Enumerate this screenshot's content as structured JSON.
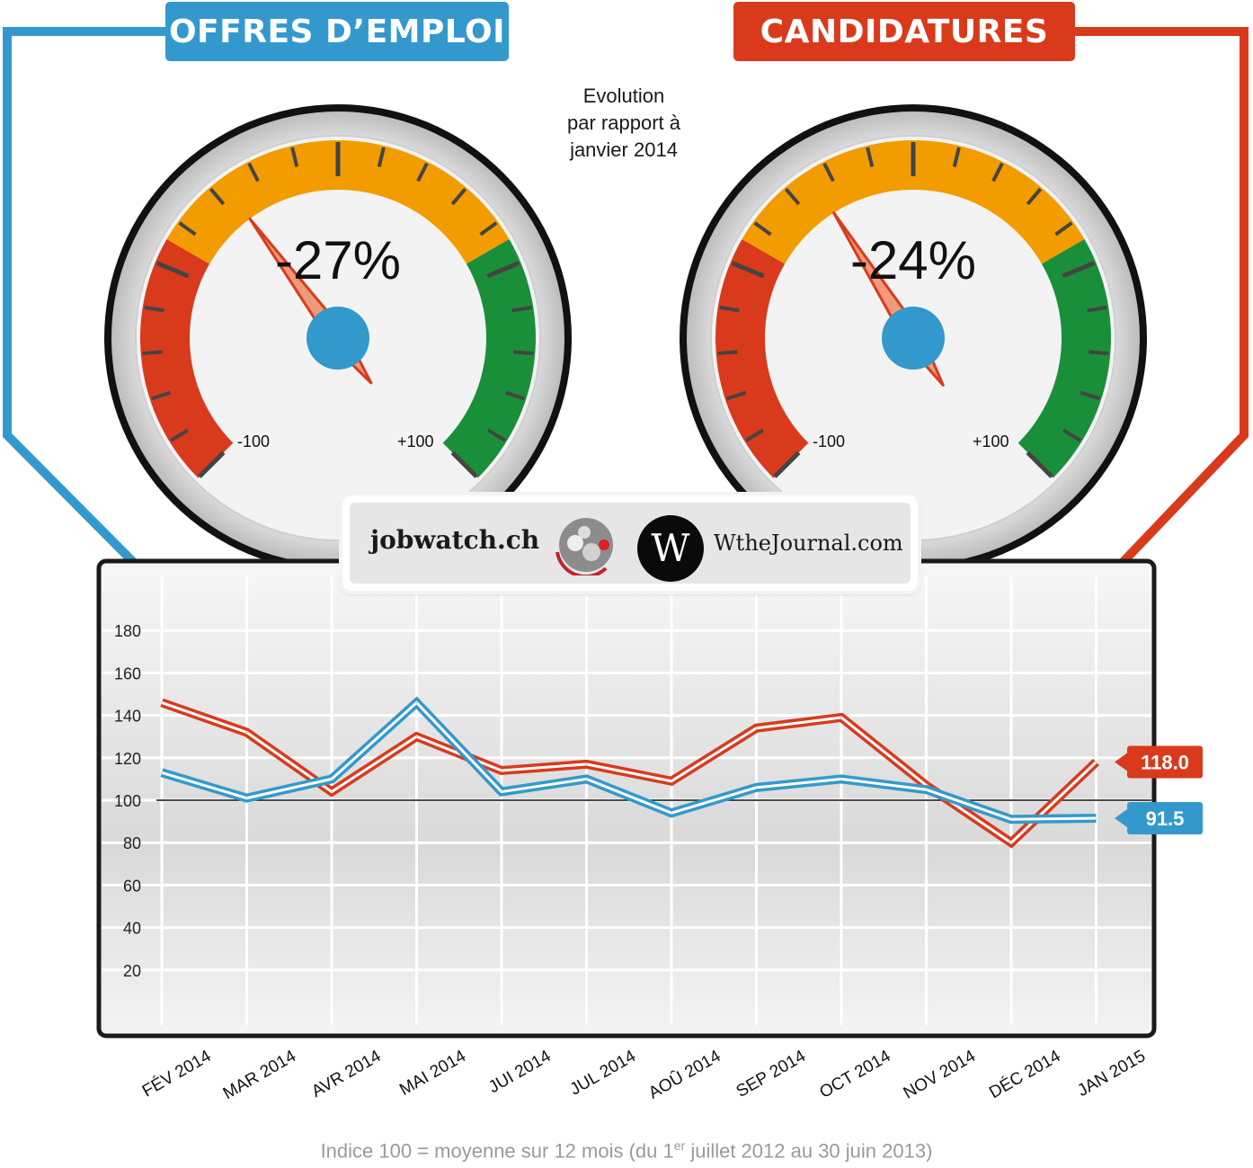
{
  "headers": {
    "left_title": "OFFRES D’EMPLOI",
    "right_title": "CANDIDATURES"
  },
  "evolution_note": "Evolution\npar rapport à\njanvier 2014",
  "gauges": [
    {
      "name": "offres",
      "value_label": "-27%",
      "value": -27,
      "min_label": "-100",
      "max_label": "+100",
      "hub_color": "#3399cc"
    },
    {
      "name": "candidatures",
      "value_label": "-24%",
      "value": -24,
      "min_label": "-100",
      "max_label": "+100",
      "hub_color": "#3399cc"
    }
  ],
  "logos": {
    "jobwatch": "jobwatch.ch",
    "wthejournal_letter": "W",
    "wthejournal": "WtheJournal.com"
  },
  "footnote": {
    "pre": "Indice 100 = moyenne sur 12 mois (du 1",
    "sup": "er",
    "post": " juillet 2012 au 30 juin 2013)"
  },
  "colors": {
    "blue": "#3399cc",
    "red": "#d93a1c",
    "orange": "#f39c00",
    "green": "#1a8f3a"
  },
  "chart_data": {
    "type": "line",
    "categories": [
      "FÉV 2014",
      "MAR 2014",
      "AVR 2014",
      "MAI 2014",
      "JUI 2014",
      "JUL 2014",
      "AOÛ 2014",
      "SEP 2014",
      "OCT 2014",
      "NOV 2014",
      "DÉC 2014",
      "JAN 2015"
    ],
    "y_ticks": [
      20,
      40,
      60,
      80,
      100,
      120,
      140,
      160,
      180
    ],
    "ylim": [
      0,
      190
    ],
    "reference_line": 100,
    "grid": true,
    "series": [
      {
        "name": "CANDIDATURES",
        "color": "#d93a1c",
        "values": [
          146,
          132,
          104,
          130,
          114,
          117,
          109,
          134,
          139,
          107,
          80,
          118.0
        ],
        "end_label": "118.0"
      },
      {
        "name": "OFFRES D’EMPLOI",
        "color": "#3399cc",
        "values": [
          113,
          101,
          110,
          146,
          104,
          110,
          94,
          106,
          110,
          105,
          91,
          91.5
        ],
        "end_label": "91.5"
      }
    ]
  }
}
